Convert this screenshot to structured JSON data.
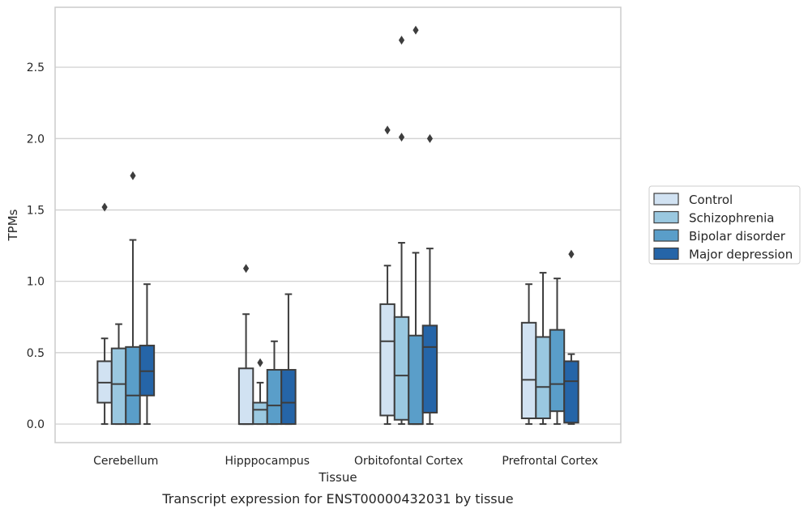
{
  "caption": "Transcript expression for ENST00000432031 by tissue",
  "chart_data": {
    "type": "box",
    "xlabel": "Tissue",
    "ylabel": "TPMs",
    "ylim": [
      -0.13,
      2.92
    ],
    "yticks": [
      0.0,
      0.5,
      1.0,
      1.5,
      2.0,
      2.5
    ],
    "ytick_labels": [
      "0.0",
      "0.5",
      "1.0",
      "1.5",
      "2.0",
      "2.5"
    ],
    "grid": "horizontal",
    "legend_position": "right",
    "categories": [
      "Cerebellum",
      "Hipppocampus",
      "Orbitofontal Cortex",
      "Prefrontal Cortex"
    ],
    "series": [
      {
        "name": "Control",
        "color": "#d1e2f2",
        "boxes": [
          {
            "whisker_low": 0.0,
            "q1": 0.15,
            "median": 0.29,
            "q3": 0.44,
            "whisker_high": 0.6,
            "outliers": [
              1.52
            ]
          },
          {
            "whisker_low": 0.0,
            "q1": 0.0,
            "median": 0.0,
            "q3": 0.39,
            "whisker_high": 0.77,
            "outliers": [
              1.09
            ]
          },
          {
            "whisker_low": 0.0,
            "q1": 0.06,
            "median": 0.58,
            "q3": 0.84,
            "whisker_high": 1.11,
            "outliers": [
              2.06
            ]
          },
          {
            "whisker_low": 0.0,
            "q1": 0.04,
            "median": 0.31,
            "q3": 0.71,
            "whisker_high": 0.98,
            "outliers": []
          }
        ]
      },
      {
        "name": "Schizophrenia",
        "color": "#9ac8e0",
        "boxes": [
          {
            "whisker_low": 0.0,
            "q1": 0.0,
            "median": 0.28,
            "q3": 0.53,
            "whisker_high": 0.7,
            "outliers": []
          },
          {
            "whisker_low": 0.0,
            "q1": 0.0,
            "median": 0.1,
            "q3": 0.15,
            "whisker_high": 0.29,
            "outliers": [
              0.43
            ]
          },
          {
            "whisker_low": 0.0,
            "q1": 0.03,
            "median": 0.34,
            "q3": 0.75,
            "whisker_high": 1.27,
            "outliers": [
              2.01,
              2.69
            ]
          },
          {
            "whisker_low": 0.0,
            "q1": 0.04,
            "median": 0.26,
            "q3": 0.61,
            "whisker_high": 1.06,
            "outliers": []
          }
        ]
      },
      {
        "name": "Bipolar disorder",
        "color": "#5a9ec9",
        "boxes": [
          {
            "whisker_low": 0.0,
            "q1": 0.0,
            "median": 0.2,
            "q3": 0.54,
            "whisker_high": 1.29,
            "outliers": [
              1.74
            ]
          },
          {
            "whisker_low": 0.0,
            "q1": 0.0,
            "median": 0.13,
            "q3": 0.38,
            "whisker_high": 0.58,
            "outliers": []
          },
          {
            "whisker_low": 0.0,
            "q1": 0.0,
            "median": 0.0,
            "q3": 0.62,
            "whisker_high": 1.2,
            "outliers": [
              2.76
            ]
          },
          {
            "whisker_low": 0.0,
            "q1": 0.09,
            "median": 0.28,
            "q3": 0.66,
            "whisker_high": 1.02,
            "outliers": []
          }
        ]
      },
      {
        "name": "Major depression",
        "color": "#2565a8",
        "boxes": [
          {
            "whisker_low": 0.0,
            "q1": 0.2,
            "median": 0.37,
            "q3": 0.55,
            "whisker_high": 0.98,
            "outliers": []
          },
          {
            "whisker_low": 0.0,
            "q1": 0.0,
            "median": 0.15,
            "q3": 0.38,
            "whisker_high": 0.91,
            "outliers": []
          },
          {
            "whisker_low": 0.0,
            "q1": 0.08,
            "median": 0.54,
            "q3": 0.69,
            "whisker_high": 1.23,
            "outliers": [
              2.0
            ]
          },
          {
            "whisker_low": 0.0,
            "q1": 0.01,
            "median": 0.3,
            "q3": 0.44,
            "whisker_high": 0.49,
            "outliers": [
              1.19
            ]
          }
        ]
      }
    ]
  }
}
